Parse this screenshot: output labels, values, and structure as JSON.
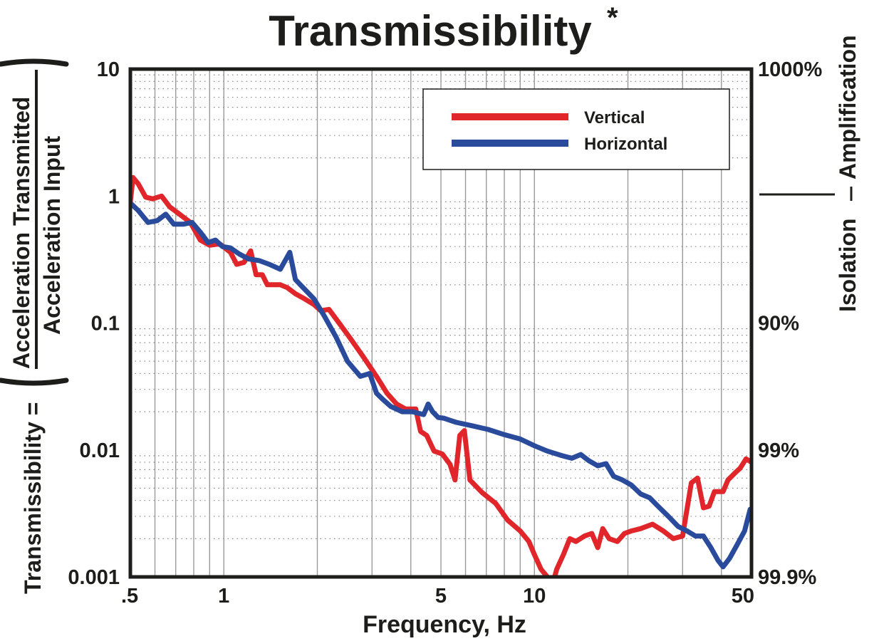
{
  "chart_data": {
    "type": "line",
    "title": "Transmissibility",
    "title_superscript": "*",
    "xlabel": "Frequency, Hz",
    "ylabel_prefix": "Transmissibility =",
    "ylabel_numerator": "Acceleration Transmitted",
    "ylabel_denominator": "Acceleration Input",
    "x_scale": "log",
    "y_scale": "log",
    "xlim": [
      0.5,
      50
    ],
    "ylim": [
      0.001,
      10
    ],
    "grid": "vertical solid major, horizontal dotted minor",
    "legend_position": "top-right",
    "x_ticks": [
      {
        "value": 0.5,
        "label": ".5"
      },
      {
        "value": 1,
        "label": "1"
      },
      {
        "value": 5,
        "label": "5"
      },
      {
        "value": 10,
        "label": "10"
      },
      {
        "value": 50,
        "label": "50"
      }
    ],
    "y_ticks": [
      {
        "value": 10,
        "label": "10"
      },
      {
        "value": 1,
        "label": "1"
      },
      {
        "value": 0.1,
        "label": "0.1"
      },
      {
        "value": 0.01,
        "label": "0.01"
      },
      {
        "value": 0.001,
        "label": "0.001"
      }
    ],
    "right_ticks": [
      {
        "value": 10,
        "label": "1000%"
      },
      {
        "value": 0.1,
        "label": "90%"
      },
      {
        "value": 0.01,
        "label": "99%"
      },
      {
        "value": 0.001,
        "label": "99.9%"
      }
    ],
    "right_labels": {
      "upper": "Amplification",
      "lower": "Isolation"
    },
    "series": [
      {
        "name": "Vertical",
        "color": "#e0262b",
        "x": [
          0.5,
          0.51,
          0.53,
          0.56,
          0.59,
          0.63,
          0.67,
          0.72,
          0.78,
          0.84,
          0.9,
          0.97,
          1.05,
          1.1,
          1.16,
          1.22,
          1.27,
          1.33,
          1.38,
          1.45,
          1.52,
          1.6,
          1.7,
          1.82,
          1.95,
          2.05,
          2.18,
          2.35,
          2.55,
          2.8,
          3.1,
          3.35,
          3.6,
          3.85,
          4.05,
          4.15,
          4.3,
          4.5,
          4.75,
          5.05,
          5.35,
          5.55,
          5.75,
          5.95,
          6.2,
          6.8,
          7.5,
          8.2,
          9.0,
          9.6,
          10.0,
          10.5,
          11.2,
          11.4,
          11.8,
          12.4,
          13.0,
          13.6,
          14.5,
          15.3,
          16.0,
          16.6,
          17.4,
          18.5,
          19.5,
          20.5,
          22.0,
          24.0,
          26.0,
          28.0,
          30.0,
          32.0,
          33.5,
          35.0,
          36.5,
          38.0,
          40.5,
          42.0,
          44.0,
          46.0,
          48.0,
          50.0
        ],
        "y": [
          0.9,
          1.4,
          1.25,
          0.98,
          0.95,
          1.0,
          0.82,
          0.72,
          0.62,
          0.45,
          0.41,
          0.42,
          0.36,
          0.29,
          0.3,
          0.37,
          0.24,
          0.24,
          0.2,
          0.2,
          0.2,
          0.19,
          0.17,
          0.155,
          0.14,
          0.125,
          0.128,
          0.1,
          0.076,
          0.055,
          0.038,
          0.028,
          0.023,
          0.021,
          0.021,
          0.021,
          0.014,
          0.013,
          0.0098,
          0.0093,
          0.0077,
          0.0058,
          0.013,
          0.0142,
          0.0058,
          0.0046,
          0.0038,
          0.0028,
          0.0023,
          0.0019,
          0.0015,
          0.00115,
          0.00095,
          0.00085,
          0.00115,
          0.0015,
          0.002,
          0.0019,
          0.0021,
          0.0022,
          0.0017,
          0.0024,
          0.002,
          0.0019,
          0.0022,
          0.0023,
          0.0024,
          0.0026,
          0.0023,
          0.002,
          0.0021,
          0.0055,
          0.006,
          0.0035,
          0.0036,
          0.0047,
          0.0047,
          0.0058,
          0.0065,
          0.0072,
          0.0085,
          0.008
        ]
      },
      {
        "name": "Horizontal",
        "color": "#2a4a9c",
        "x": [
          0.5,
          0.53,
          0.57,
          0.61,
          0.65,
          0.69,
          0.74,
          0.79,
          0.84,
          0.89,
          0.94,
          0.99,
          1.05,
          1.12,
          1.2,
          1.3,
          1.4,
          1.52,
          1.63,
          1.7,
          1.8,
          1.95,
          2.1,
          2.3,
          2.5,
          2.75,
          2.95,
          3.1,
          3.25,
          3.45,
          3.75,
          4.05,
          4.4,
          4.55,
          4.7,
          4.9,
          5.1,
          5.6,
          6.3,
          7.1,
          8.0,
          9.0,
          10.0,
          11.0,
          12.3,
          13.2,
          14.1,
          15.0,
          16.0,
          17.0,
          18.0,
          19.2,
          20.5,
          22.0,
          23.5,
          25.0,
          27.0,
          29.0,
          31.0,
          33.0,
          35.0,
          37.0,
          39.0,
          40.5,
          42.5,
          45.0,
          47.5,
          49.5,
          51.5
        ],
        "y": [
          0.88,
          0.77,
          0.62,
          0.64,
          0.72,
          0.6,
          0.6,
          0.62,
          0.52,
          0.43,
          0.45,
          0.4,
          0.39,
          0.35,
          0.32,
          0.31,
          0.29,
          0.265,
          0.36,
          0.22,
          0.19,
          0.155,
          0.115,
          0.077,
          0.05,
          0.038,
          0.04,
          0.028,
          0.025,
          0.022,
          0.02,
          0.02,
          0.019,
          0.023,
          0.02,
          0.018,
          0.0178,
          0.0165,
          0.0155,
          0.0145,
          0.0132,
          0.0122,
          0.0108,
          0.0098,
          0.009,
          0.0086,
          0.0092,
          0.0082,
          0.0075,
          0.0078,
          0.0062,
          0.0058,
          0.0053,
          0.0045,
          0.0042,
          0.0036,
          0.003,
          0.0025,
          0.0023,
          0.0021,
          0.0021,
          0.0017,
          0.00135,
          0.0012,
          0.0014,
          0.0018,
          0.0023,
          0.0034,
          0.0034
        ]
      }
    ]
  }
}
